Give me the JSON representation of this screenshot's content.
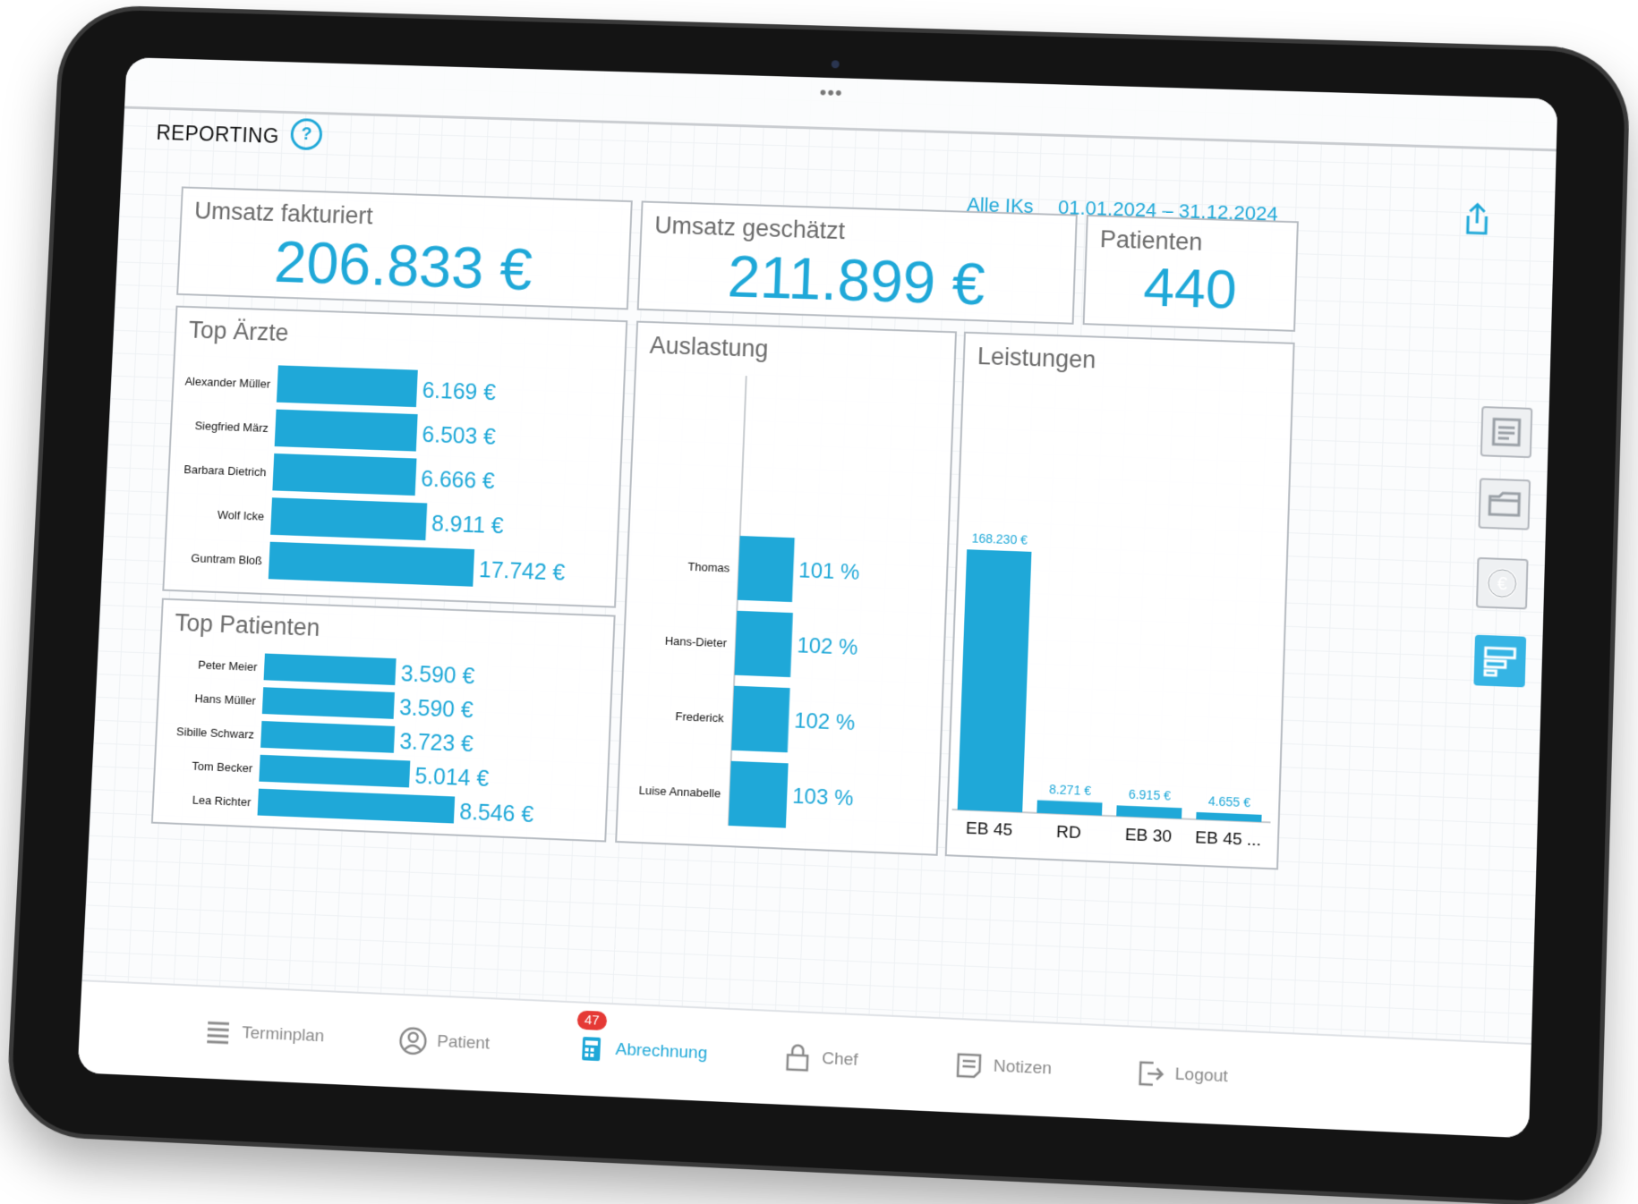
{
  "header": {
    "title": "REPORTING",
    "help_label": "?"
  },
  "filters": {
    "ik": "Alle IKs",
    "date_range": "01.01.2024 – 31.12.2024"
  },
  "kpis": {
    "umsatz_fakturiert": {
      "label": "Umsatz fakturiert",
      "value": "206.833 €"
    },
    "umsatz_geschaetzt": {
      "label": "Umsatz geschätzt",
      "value": "211.899 €"
    },
    "patienten": {
      "label": "Patienten",
      "value": "440"
    }
  },
  "colors": {
    "accent": "#1fa8d8",
    "border": "#b7bcc2",
    "badge": "#e53935"
  },
  "chart_data": [
    {
      "type": "bar",
      "orientation": "horizontal",
      "title": "Top Ärzte",
      "categories": [
        "Alexander Müller",
        "Siegfried März",
        "Barbara Dietrich",
        "Wolf Icke",
        "Guntram Bloß"
      ],
      "values": [
        6169,
        6503,
        6666,
        8911,
        17742
      ],
      "labels": [
        "6.169 €",
        "6.503 €",
        "6.666 €",
        "8.911 €",
        "17.742 €"
      ]
    },
    {
      "type": "bar",
      "orientation": "horizontal",
      "title": "Top Patienten",
      "categories": [
        "Peter Meier",
        "Hans Müller",
        "Sibille Schwarz",
        "Tom Becker",
        "Lea Richter"
      ],
      "values": [
        3590,
        3590,
        3723,
        5014,
        8546
      ],
      "labels": [
        "3.590 €",
        "3.590 €",
        "3.723 €",
        "5.014 €",
        "8.546 €"
      ]
    },
    {
      "type": "bar",
      "orientation": "horizontal",
      "title": "Auslastung",
      "categories": [
        "Thomas",
        "Hans-Dieter",
        "Frederick",
        "Luise Annabelle"
      ],
      "values": [
        101,
        102,
        102,
        103
      ],
      "labels": [
        "101 %",
        "102 %",
        "102 %",
        "103 %"
      ]
    },
    {
      "type": "bar",
      "orientation": "vertical",
      "title": "Leistungen",
      "categories": [
        "EB 45",
        "RD",
        "EB 30",
        "EB 45 ..."
      ],
      "values": [
        168230,
        8271,
        6915,
        4655
      ],
      "labels": [
        "168.230 €",
        "8.271 €",
        "6.915 €",
        "4.655 €"
      ]
    }
  ],
  "sidebar": {
    "icons": [
      "document-icon",
      "folder-icon",
      "euro-icon",
      "report-icon"
    ],
    "active": 3
  },
  "tabs": [
    {
      "label": "Terminplan",
      "icon": "calendar-list-icon"
    },
    {
      "label": "Patient",
      "icon": "person-icon"
    },
    {
      "label": "Abrechnung",
      "icon": "calculator-icon",
      "badge": "47",
      "active": true
    },
    {
      "label": "Chef",
      "icon": "lock-icon"
    },
    {
      "label": "Notizen",
      "icon": "notes-icon"
    },
    {
      "label": "Logout",
      "icon": "logout-icon"
    }
  ]
}
